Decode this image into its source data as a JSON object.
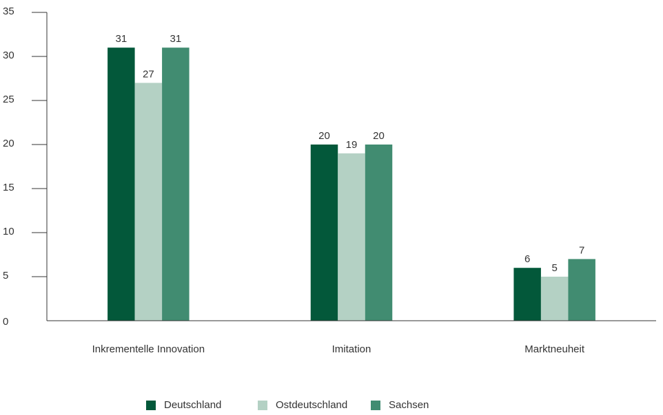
{
  "chart_data": {
    "type": "bar",
    "categories": [
      "Inkrementelle Innovation",
      "Imitation",
      "Marktneuheit"
    ],
    "series": [
      {
        "name": "Deutschland",
        "values": [
          31,
          20,
          6
        ],
        "color": "#03583a"
      },
      {
        "name": "Ostdeutschland",
        "values": [
          27,
          19,
          5
        ],
        "color": "#b4d1c4"
      },
      {
        "name": "Sachsen",
        "values": [
          31,
          20,
          7
        ],
        "color": "#418c71"
      }
    ],
    "data_labels": [
      [
        "31",
        "20",
        "6"
      ],
      [
        "27",
        "19",
        "5"
      ],
      [
        "31",
        "20",
        "7"
      ]
    ],
    "ylim": [
      0,
      35
    ],
    "yticks": [
      0,
      5,
      10,
      15,
      20,
      25,
      30,
      35
    ],
    "ytick_labels": [
      "0",
      "5",
      "10",
      "15",
      "20",
      "25",
      "30",
      "35"
    ],
    "grid": false,
    "legend_position": "bottom-center",
    "title": "",
    "xlabel": "",
    "ylabel": ""
  }
}
